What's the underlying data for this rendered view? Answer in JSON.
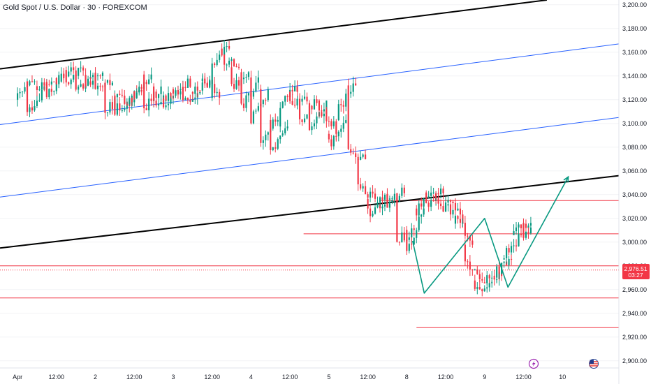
{
  "header": {
    "title": "Gold Spot / U.S. Dollar · 30 · FOREXCOM"
  },
  "price_badge": {
    "price": "2,976.51",
    "countdown": "03:27",
    "color": "#f23645"
  },
  "chart_data": {
    "type": "candlestick",
    "title": "Gold Spot / U.S. Dollar · 30 · FOREXCOM",
    "y_axis": {
      "ticks": [
        3200,
        3180,
        3160,
        3140,
        3120,
        3100,
        3080,
        3060,
        3040,
        3020,
        3000,
        2980,
        2960,
        2940,
        2920,
        2900
      ],
      "tick_labels": [
        "3,200.00",
        "3,180.00",
        "3,160.00",
        "3,140.00",
        "3,120.00",
        "3,100.00",
        "3,080.00",
        "3,060.00",
        "3,040.00",
        "3,020.00",
        "3,000.00",
        "2,980.00",
        "2,960.00",
        "2,940.00",
        "2,920.00",
        "2,900.00"
      ],
      "ylim": [
        2894,
        3204
      ]
    },
    "x_axis": {
      "labels": [
        "Apr",
        "12:00",
        "2",
        "12:00",
        "3",
        "12:00",
        "4",
        "12:00",
        "5",
        "12:00",
        "8",
        "12:00",
        "9",
        "12:00",
        "10"
      ],
      "label_t": [
        0,
        2,
        4,
        6,
        8,
        10,
        12,
        14,
        16,
        18,
        20,
        22,
        24,
        26,
        28
      ],
      "t_range": [
        -0.9,
        30.9
      ]
    },
    "colors": {
      "up": "#089981",
      "down": "#f23645",
      "channel": "#000000",
      "inner_channel": "#2962ff",
      "level": "#f23645",
      "path": "#089981"
    },
    "price_path": [
      [
        3120,
        3136
      ],
      [
        3105,
        3130
      ],
      [
        3128,
        3135
      ],
      [
        3120,
        3140
      ],
      [
        3135,
        3146
      ],
      [
        3130,
        3148
      ],
      [
        3125,
        3138
      ],
      [
        3133,
        3140
      ],
      [
        3125,
        3135
      ],
      [
        3105,
        3128
      ],
      [
        3110,
        3120
      ],
      [
        3115,
        3128
      ],
      [
        3122,
        3138
      ],
      [
        3110,
        3130
      ],
      [
        3115,
        3125
      ],
      [
        3112,
        3130
      ],
      [
        3122,
        3135
      ],
      [
        3115,
        3128
      ],
      [
        3125,
        3135
      ],
      [
        3140,
        3125
      ],
      [
        3148,
        3165
      ],
      [
        3155,
        3148
      ],
      [
        3128,
        3140
      ],
      [
        3110,
        3135
      ],
      [
        3100,
        3125
      ],
      [
        3085,
        3105
      ],
      [
        3070,
        3100
      ],
      [
        3115,
        3130
      ],
      [
        3115,
        3120
      ],
      [
        3100,
        3120
      ],
      [
        3090,
        3115
      ],
      [
        3115,
        3095
      ],
      [
        3080,
        3100
      ],
      [
        3110,
        3132
      ],
      [
        3080,
        3070
      ],
      [
        3045,
        3040
      ],
      [
        3025,
        3030
      ],
      [
        3035,
        3040
      ],
      [
        3025,
        3045
      ],
      [
        3000,
        3010
      ],
      [
        2985,
        3030
      ],
      [
        3025,
        3040
      ],
      [
        3030,
        3045
      ],
      [
        3035,
        3025
      ],
      [
        3040,
        3020
      ],
      [
        3025,
        3000
      ],
      [
        2985,
        2965
      ],
      [
        2958,
        2962
      ],
      [
        2968,
        2975
      ],
      [
        2972,
        2985
      ],
      [
        2988,
        3005
      ],
      [
        3010,
        3015
      ],
      [
        3005,
        3012
      ],
      [
        3015,
        3020
      ],
      [
        3010,
        3000
      ],
      [
        2995,
        2988
      ],
      [
        2975,
        2980
      ],
      [
        2980,
        2975
      ],
      [
        2976,
        2976.51
      ]
    ],
    "candles_per_day": 4,
    "channels": [
      {
        "name": "outer-upper",
        "style": "black",
        "from": [
          -0.9,
          3146
        ],
        "to": [
          27.2,
          3204
        ]
      },
      {
        "name": "outer-lower",
        "style": "black",
        "from": [
          -0.9,
          2995
        ],
        "to": [
          30.9,
          3056
        ]
      },
      {
        "name": "inner-upper",
        "style": "blue",
        "from": [
          -0.9,
          3099
        ],
        "to": [
          30.9,
          3167
        ]
      },
      {
        "name": "inner-lower",
        "style": "blue",
        "from": [
          -0.9,
          3038
        ],
        "to": [
          30.9,
          3105
        ]
      }
    ],
    "levels": [
      {
        "price": 3035,
        "from_t": 18.6,
        "to_t": 30.9
      },
      {
        "price": 3007,
        "from_t": 14.7,
        "to_t": 30.9
      },
      {
        "price": 2980,
        "from_t": -0.9,
        "to_t": 30.9
      },
      {
        "price": 2953,
        "from_t": -0.9,
        "to_t": 30.9
      },
      {
        "price": 2928,
        "from_t": 20.5,
        "to_t": 30.9
      }
    ],
    "current_price_line": 2976.51,
    "projection_path": [
      [
        20.3,
        3001
      ],
      [
        20.9,
        2957
      ],
      [
        24.0,
        3020
      ],
      [
        25.2,
        2962
      ],
      [
        28.3,
        3055
      ]
    ]
  },
  "footer_icons": [
    {
      "name": "lightning-icon",
      "color": "#9c27b0"
    },
    {
      "name": "us-flag-icon",
      "color": "#1e3a8a"
    }
  ]
}
